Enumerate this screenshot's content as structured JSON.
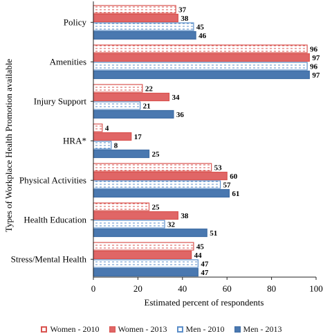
{
  "chart_data": {
    "type": "bar",
    "orientation": "horizontal",
    "categories": [
      "Policy",
      "Amenities",
      "Injury Support",
      "HRA*",
      "Physical Activities",
      "Health Education",
      "Stress/Mental Health"
    ],
    "series": [
      {
        "name": "Women - 2010",
        "values": [
          37,
          96,
          22,
          4,
          53,
          25,
          45
        ],
        "color": "#d9534f",
        "style": "hatched"
      },
      {
        "name": "Women - 2013",
        "values": [
          38,
          97,
          34,
          17,
          60,
          38,
          44
        ],
        "color": "#e06666",
        "style": "solid"
      },
      {
        "name": "Men - 2010",
        "values": [
          45,
          96,
          21,
          8,
          57,
          32,
          47
        ],
        "color": "#5b8ec9",
        "style": "hatched"
      },
      {
        "name": "Men - 2013",
        "values": [
          46,
          97,
          36,
          25,
          61,
          51,
          47
        ],
        "color": "#4a78b0",
        "style": "solid"
      }
    ],
    "xlabel": "Estimated percent of respondents",
    "ylabel": "Types of Workplace Health Promotion available",
    "xlim": [
      0,
      100
    ],
    "xticks": [
      0,
      20,
      40,
      60,
      80,
      100
    ],
    "grid": false,
    "legend": "bottom"
  }
}
